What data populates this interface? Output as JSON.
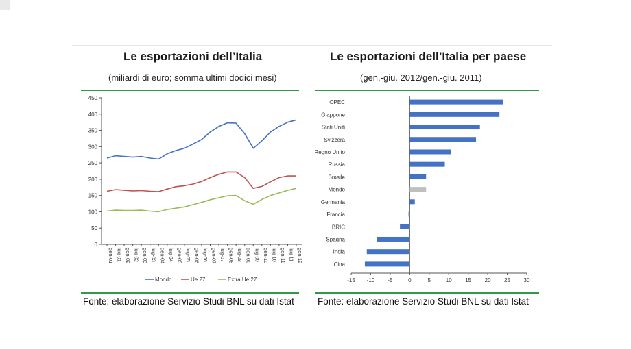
{
  "left": {
    "title": "Le esportazioni dell’Italia",
    "subtitle": "(miliardi di euro; somma ultimi dodici mesi)",
    "source": "Fonte: elaborazione Servizio Studi BNL su dati Istat"
  },
  "right": {
    "title": "Le esportazioni dell’Italia per paese",
    "subtitle": "(gen.-giu. 2012/gen.-giu. 2011)",
    "source": "Fonte: elaborazione Servizio Studi BNL su dati Istat"
  },
  "colors": {
    "rule": "#2e9a4a",
    "mondo": "#4472c4",
    "ue27": "#c0504d",
    "extra": "#9bbb59",
    "bar": "#4472c4",
    "bar_highlight": "#bfbfbf"
  },
  "chart_data": [
    {
      "type": "line",
      "categories": [
        "gen-01",
        "lug-01",
        "gen-02",
        "lug-02",
        "gen-03",
        "lug-03",
        "gen-04",
        "lug-04",
        "gen-05",
        "lug-05",
        "gen-06",
        "lug-06",
        "gen-07",
        "lug-07",
        "gen-08",
        "lug-08",
        "gen-09",
        "lug-09",
        "gen-10",
        "lug-10",
        "gen-11",
        "lug-11",
        "gen-12"
      ],
      "ylim": [
        0,
        450
      ],
      "yticks": [
        0,
        50,
        100,
        150,
        200,
        250,
        300,
        350,
        400,
        450
      ],
      "series": [
        {
          "name": "Mondo",
          "values": [
            265,
            272,
            270,
            268,
            270,
            265,
            262,
            278,
            288,
            295,
            308,
            322,
            345,
            362,
            373,
            372,
            340,
            295,
            318,
            345,
            362,
            375,
            382
          ]
        },
        {
          "name": "Ue 27",
          "values": [
            163,
            168,
            166,
            164,
            165,
            163,
            162,
            170,
            177,
            180,
            185,
            193,
            205,
            215,
            222,
            222,
            205,
            172,
            178,
            192,
            205,
            210,
            210
          ]
        },
        {
          "name": "Extra Ue 27",
          "values": [
            102,
            105,
            104,
            104,
            105,
            102,
            100,
            107,
            111,
            115,
            122,
            129,
            137,
            143,
            149,
            150,
            134,
            123,
            138,
            150,
            158,
            166,
            172
          ]
        }
      ]
    },
    {
      "type": "bar",
      "orientation": "horizontal",
      "categories": [
        "OPEC",
        "Giappone",
        "Stati Uniti",
        "Svizzera",
        "Regno Unito",
        "Russia",
        "Brasile",
        "Mondo",
        "Germania",
        "Francia",
        "BRIC",
        "Spagna",
        "India",
        "Cina"
      ],
      "values": [
        24,
        23,
        18,
        17,
        10.5,
        9,
        4.2,
        4.2,
        1.3,
        -0.3,
        -2.5,
        -8.5,
        -11,
        -11.5
      ],
      "xlim": [
        -15,
        30
      ],
      "xticks": [
        -15,
        -10,
        -5,
        0,
        5,
        10,
        15,
        20,
        25,
        30
      ],
      "highlight": "Mondo"
    }
  ]
}
